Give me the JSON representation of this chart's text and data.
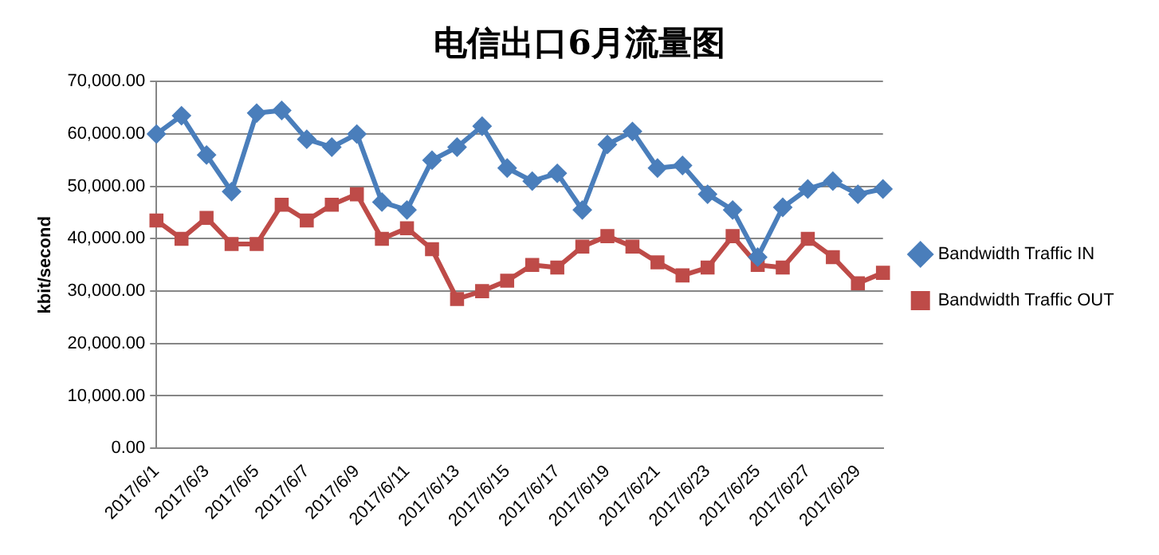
{
  "chart_data": {
    "type": "line",
    "title": "电信出口6月流量图",
    "ylabel": "kbit/second",
    "categories": [
      "2017/6/1",
      null,
      "2017/6/3",
      null,
      "2017/6/5",
      null,
      "2017/6/7",
      null,
      "2017/6/9",
      null,
      "2017/6/11",
      null,
      "2017/6/13",
      null,
      "2017/6/15",
      null,
      "2017/6/17",
      null,
      "2017/6/19",
      null,
      "2017/6/21",
      null,
      "2017/6/23",
      null,
      "2017/6/25",
      null,
      "2017/6/27",
      null,
      "2017/6/29",
      null
    ],
    "series": [
      {
        "name": "Bandwidth Traffic IN",
        "color": "#4a7ebb",
        "marker": "diamond",
        "values": [
          60000,
          63500,
          56000,
          49000,
          64000,
          64500,
          59000,
          57500,
          60000,
          47000,
          45500,
          55000,
          57500,
          61500,
          53500,
          51000,
          52500,
          45500,
          58000,
          60500,
          53500,
          54000,
          48500,
          45500,
          36500,
          46000,
          49500,
          51000,
          48500,
          49500
        ]
      },
      {
        "name": "Bandwidth Traffic OUT",
        "color": "#be4b48",
        "marker": "square",
        "values": [
          43500,
          40000,
          44000,
          39000,
          39000,
          46500,
          43500,
          46500,
          48500,
          40000,
          42000,
          38000,
          28500,
          30000,
          32000,
          35000,
          34500,
          38500,
          40500,
          38500,
          35500,
          33000,
          34500,
          40500,
          35000,
          34500,
          40000,
          36500,
          31500,
          33500
        ]
      }
    ],
    "ylim": [
      0,
      70000
    ],
    "yticks": [
      {
        "value": 0,
        "label": "0.00"
      },
      {
        "value": 10000,
        "label": "10,000.00"
      },
      {
        "value": 20000,
        "label": "20,000.00"
      },
      {
        "value": 30000,
        "label": "30,000.00"
      },
      {
        "value": 40000,
        "label": "40,000.00"
      },
      {
        "value": 50000,
        "label": "50,000.00"
      },
      {
        "value": 60000,
        "label": "60,000.00"
      },
      {
        "value": 70000,
        "label": "70,000.00"
      }
    ],
    "grid": "y",
    "legend": "right",
    "line_style": "solid"
  }
}
